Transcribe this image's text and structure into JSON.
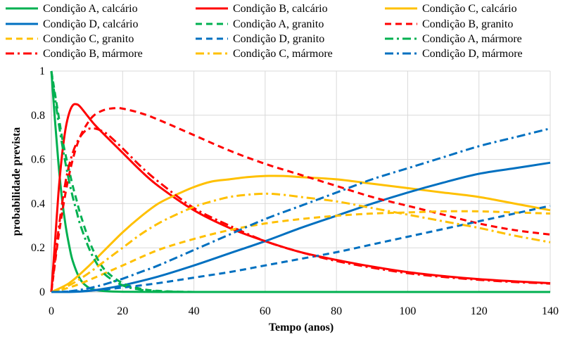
{
  "chart_data": {
    "type": "line",
    "title": "",
    "xlabel": "Tempo (anos)",
    "ylabel": "probabilidade prevista",
    "xlim": [
      0,
      140
    ],
    "ylim": [
      0,
      1
    ],
    "xticks": [
      "0",
      "20",
      "40",
      "60",
      "80",
      "100",
      "120",
      "140"
    ],
    "yticks": [
      "0",
      "0.2",
      "0.4",
      "0.6",
      "0.8",
      "1"
    ],
    "grid": true,
    "legend_position": "top",
    "colors": {
      "A": "#00b050",
      "B": "#ff0000",
      "C": "#ffc000",
      "D": "#0070c0"
    },
    "series": [
      {
        "name": "Condição A, calcário",
        "color": "#00b050",
        "style": "solid",
        "x": [
          0,
          1,
          2,
          3,
          4,
          5,
          6,
          8,
          10,
          12,
          15,
          20,
          30,
          60,
          140
        ],
        "values": [
          1.0,
          0.78,
          0.58,
          0.42,
          0.3,
          0.21,
          0.14,
          0.06,
          0.025,
          0.01,
          0.004,
          0.001,
          0.0,
          0.0,
          0.0
        ]
      },
      {
        "name": "Condição B, calcário",
        "color": "#ff0000",
        "style": "solid",
        "x": [
          0,
          1,
          2,
          3,
          4,
          5,
          6,
          7,
          8,
          10,
          12,
          15,
          20,
          25,
          30,
          40,
          50,
          60,
          70,
          80,
          90,
          100,
          110,
          120,
          130,
          140
        ],
        "values": [
          0.0,
          0.22,
          0.45,
          0.62,
          0.74,
          0.81,
          0.845,
          0.85,
          0.84,
          0.8,
          0.76,
          0.71,
          0.63,
          0.55,
          0.48,
          0.37,
          0.29,
          0.23,
          0.18,
          0.145,
          0.115,
          0.09,
          0.072,
          0.058,
          0.048,
          0.04
        ]
      },
      {
        "name": "Condição C, calcário",
        "color": "#ffc000",
        "style": "solid",
        "x": [
          0,
          5,
          10,
          15,
          20,
          25,
          30,
          35,
          40,
          45,
          50,
          55,
          60,
          65,
          70,
          80,
          90,
          100,
          110,
          120,
          130,
          140
        ],
        "values": [
          0.0,
          0.04,
          0.11,
          0.19,
          0.27,
          0.34,
          0.4,
          0.44,
          0.475,
          0.5,
          0.51,
          0.52,
          0.525,
          0.525,
          0.52,
          0.51,
          0.49,
          0.47,
          0.45,
          0.43,
          0.4,
          0.37
        ]
      },
      {
        "name": "Condição D, calcário",
        "color": "#0070c0",
        "style": "solid",
        "x": [
          0,
          5,
          10,
          15,
          20,
          30,
          40,
          50,
          60,
          70,
          80,
          90,
          100,
          110,
          120,
          130,
          140
        ],
        "values": [
          0.0,
          0.0,
          0.004,
          0.015,
          0.03,
          0.07,
          0.12,
          0.175,
          0.23,
          0.29,
          0.345,
          0.4,
          0.45,
          0.495,
          0.535,
          0.56,
          0.585
        ]
      },
      {
        "name": "Condição A, granito",
        "color": "#00b050",
        "style": "dash",
        "x": [
          0,
          1,
          2,
          3,
          4,
          5,
          6,
          7,
          8,
          10,
          12,
          15,
          20,
          25,
          30,
          40,
          60,
          140
        ],
        "values": [
          1.0,
          0.9,
          0.8,
          0.7,
          0.62,
          0.55,
          0.48,
          0.42,
          0.36,
          0.26,
          0.18,
          0.1,
          0.04,
          0.015,
          0.005,
          0.0,
          0.0,
          0.0
        ]
      },
      {
        "name": "Condição B, granito",
        "color": "#ff0000",
        "style": "dash",
        "x": [
          0,
          2,
          4,
          6,
          8,
          10,
          12,
          15,
          18,
          20,
          25,
          30,
          40,
          50,
          60,
          70,
          80,
          90,
          100,
          110,
          120,
          130,
          140
        ],
        "values": [
          0.0,
          0.25,
          0.45,
          0.6,
          0.7,
          0.76,
          0.8,
          0.825,
          0.832,
          0.83,
          0.81,
          0.78,
          0.71,
          0.64,
          0.58,
          0.53,
          0.48,
          0.43,
          0.39,
          0.35,
          0.31,
          0.28,
          0.26
        ]
      },
      {
        "name": "Condição C, granito",
        "color": "#ffc000",
        "style": "dash",
        "x": [
          0,
          5,
          10,
          20,
          30,
          40,
          50,
          60,
          70,
          80,
          90,
          100,
          110,
          120,
          130,
          140
        ],
        "values": [
          0.0,
          0.02,
          0.05,
          0.12,
          0.19,
          0.24,
          0.28,
          0.31,
          0.33,
          0.345,
          0.355,
          0.36,
          0.365,
          0.365,
          0.36,
          0.355
        ]
      },
      {
        "name": "Condição D, granito",
        "color": "#0070c0",
        "style": "dash",
        "x": [
          0,
          10,
          20,
          30,
          40,
          50,
          60,
          70,
          80,
          90,
          100,
          110,
          120,
          130,
          140
        ],
        "values": [
          0.0,
          0.005,
          0.02,
          0.04,
          0.065,
          0.09,
          0.12,
          0.15,
          0.18,
          0.215,
          0.25,
          0.285,
          0.32,
          0.355,
          0.39
        ]
      },
      {
        "name": "Condição A, mármore",
        "color": "#00b050",
        "style": "dashdot",
        "x": [
          0,
          1,
          2,
          3,
          4,
          5,
          6,
          7,
          8,
          10,
          12,
          15,
          20,
          25,
          30,
          40,
          60,
          140
        ],
        "values": [
          1.0,
          0.88,
          0.77,
          0.67,
          0.58,
          0.5,
          0.43,
          0.37,
          0.31,
          0.22,
          0.15,
          0.08,
          0.03,
          0.01,
          0.003,
          0.0,
          0.0,
          0.0
        ]
      },
      {
        "name": "Condição B, mármore",
        "color": "#ff0000",
        "style": "dashdot",
        "x": [
          0,
          2,
          4,
          6,
          8,
          10,
          12,
          14,
          16,
          20,
          25,
          30,
          40,
          50,
          60,
          70,
          80,
          90,
          100,
          110,
          120,
          130,
          140
        ],
        "values": [
          0.0,
          0.28,
          0.5,
          0.63,
          0.7,
          0.735,
          0.74,
          0.73,
          0.71,
          0.65,
          0.57,
          0.5,
          0.38,
          0.3,
          0.23,
          0.18,
          0.14,
          0.11,
          0.085,
          0.068,
          0.055,
          0.045,
          0.038
        ]
      },
      {
        "name": "Condição C, mármore",
        "color": "#ffc000",
        "style": "dashdot",
        "x": [
          0,
          5,
          10,
          15,
          20,
          25,
          30,
          35,
          40,
          45,
          50,
          55,
          60,
          65,
          70,
          80,
          90,
          100,
          110,
          120,
          130,
          140
        ],
        "values": [
          0.0,
          0.03,
          0.08,
          0.14,
          0.2,
          0.26,
          0.31,
          0.35,
          0.385,
          0.41,
          0.43,
          0.44,
          0.445,
          0.44,
          0.43,
          0.41,
          0.38,
          0.35,
          0.32,
          0.29,
          0.255,
          0.225
        ]
      },
      {
        "name": "Condição D, mármore",
        "color": "#0070c0",
        "style": "dashdot",
        "x": [
          0,
          5,
          10,
          15,
          20,
          25,
          30,
          40,
          50,
          60,
          70,
          80,
          90,
          100,
          110,
          120,
          130,
          140
        ],
        "values": [
          0.0,
          0.003,
          0.015,
          0.035,
          0.06,
          0.09,
          0.12,
          0.19,
          0.26,
          0.33,
          0.39,
          0.45,
          0.51,
          0.56,
          0.61,
          0.66,
          0.7,
          0.74
        ]
      }
    ],
    "legend_order": [
      "Condição A, calcário",
      "Condição B, calcário",
      "Condição C, calcário",
      "Condição D, calcário",
      "Condição A, granito",
      "Condição B, granito",
      "Condição C, granito",
      "Condição D, granito",
      "Condição A, mármore",
      "Condição B, mármore",
      "Condição C, mármore",
      "Condição D, mármore"
    ]
  }
}
